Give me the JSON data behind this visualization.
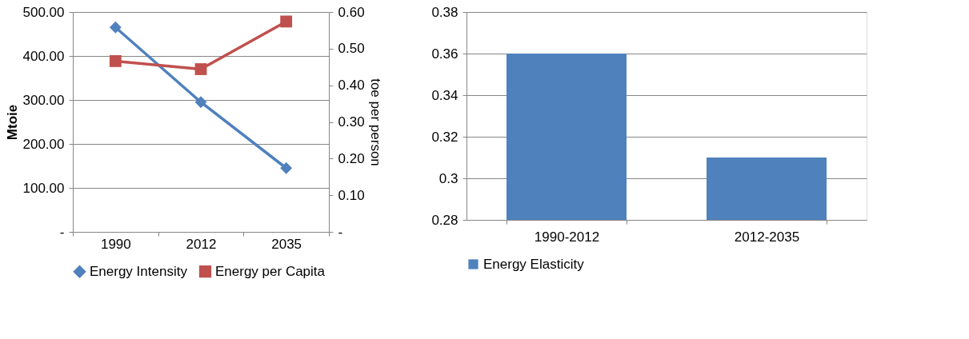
{
  "chart_data": [
    {
      "type": "line",
      "categories": [
        "1990",
        "2012",
        "2035"
      ],
      "ylabel": "Mtoie",
      "y2label": "toe  per person",
      "series": [
        {
          "name": "Energy Intensity",
          "color": "#4f81bd",
          "marker": "diamond",
          "values": [
            465,
            295,
            145
          ]
        },
        {
          "name": "Energy per Capita",
          "color": "#c0504d",
          "marker": "square",
          "axis": "y2",
          "values": [
            0.466,
            0.444,
            0.574
          ]
        }
      ],
      "ylim": [
        0,
        500
      ],
      "yticks": [
        {
          "value": 0,
          "label": "-"
        },
        {
          "value": 100,
          "label": "100.00"
        },
        {
          "value": 200,
          "label": "200.00"
        },
        {
          "value": 300,
          "label": "300.00"
        },
        {
          "value": 400,
          "label": "400.00"
        },
        {
          "value": 500,
          "label": "500.00"
        }
      ],
      "y2lim": [
        0,
        0.6
      ],
      "y2ticks": [
        {
          "value": 0,
          "label": "-"
        },
        {
          "value": 0.1,
          "label": "0.10"
        },
        {
          "value": 0.2,
          "label": "0.20"
        },
        {
          "value": 0.3,
          "label": "0.30"
        },
        {
          "value": 0.4,
          "label": "0.40"
        },
        {
          "value": 0.5,
          "label": "0.50"
        },
        {
          "value": 0.6,
          "label": "0.60"
        }
      ],
      "grid": "y",
      "legend": "bottom"
    },
    {
      "type": "bar",
      "categories": [
        "1990-2012",
        "2012-2035"
      ],
      "series": [
        {
          "name": "Energy Elasticity",
          "color": "#4f81bd",
          "values": [
            0.36,
            0.31
          ]
        }
      ],
      "ylim": [
        0.28,
        0.38
      ],
      "yticks": [
        0.28,
        0.3,
        0.32,
        0.34,
        0.36,
        0.38
      ],
      "grid": "y",
      "legend": "bottom"
    }
  ]
}
